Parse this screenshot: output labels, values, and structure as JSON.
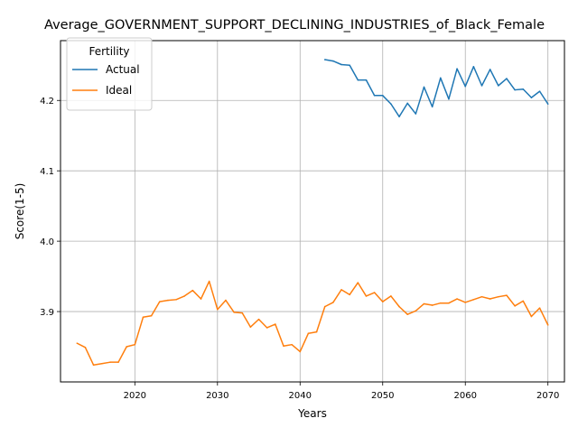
{
  "chart_data": {
    "type": "line",
    "title": "Average_GOVERNMENT_SUPPORT_DECLINING_INDUSTRIES_of_Black_Female",
    "xlabel": "Years",
    "ylabel": "Score(1-5)",
    "xlim": [
      2011,
      2072
    ],
    "ylim": [
      3.8,
      4.285
    ],
    "xticks": [
      2020,
      2030,
      2040,
      2050,
      2060,
      2070
    ],
    "yticks": [
      3.9,
      4.0,
      4.1,
      4.2
    ],
    "xtick_labels": [
      "2020",
      "2030",
      "2040",
      "2050",
      "2060",
      "2070"
    ],
    "ytick_labels": [
      "3.9",
      "4.0",
      "4.1",
      "4.2"
    ],
    "grid": true,
    "legend": {
      "title": "Fertility",
      "placement": "top-left"
    },
    "series": [
      {
        "name": "Actual",
        "color": "#1f77b4",
        "x": [
          2043,
          2044,
          2045,
          2046,
          2047,
          2048,
          2049,
          2050,
          2051,
          2052,
          2053,
          2054,
          2055,
          2056,
          2057,
          2058,
          2059,
          2060,
          2061,
          2062,
          2063,
          2064,
          2065,
          2066,
          2067,
          2068,
          2069,
          2070
        ],
        "values": [
          4.258,
          4.256,
          4.251,
          4.25,
          4.229,
          4.229,
          4.207,
          4.207,
          4.195,
          4.177,
          4.196,
          4.181,
          4.219,
          4.191,
          4.232,
          4.202,
          4.245,
          4.22,
          4.248,
          4.221,
          4.244,
          4.221,
          4.231,
          4.215,
          4.216,
          4.204,
          4.213,
          4.195
        ]
      },
      {
        "name": "Ideal",
        "color": "#ff7f0e",
        "x": [
          2013,
          2014,
          2015,
          2016,
          2017,
          2018,
          2019,
          2020,
          2021,
          2022,
          2023,
          2024,
          2025,
          2026,
          2027,
          2028,
          2029,
          2030,
          2031,
          2032,
          2033,
          2034,
          2035,
          2036,
          2037,
          2038,
          2039,
          2040,
          2041,
          2042,
          2043,
          2044,
          2045,
          2046,
          2047,
          2048,
          2049,
          2050,
          2051,
          2052,
          2053,
          2054,
          2055,
          2056,
          2057,
          2058,
          2059,
          2060,
          2061,
          2062,
          2063,
          2064,
          2065,
          2066,
          2067,
          2068,
          2069,
          2070
        ],
        "values": [
          3.855,
          3.849,
          3.824,
          3.826,
          3.828,
          3.828,
          3.85,
          3.853,
          3.892,
          3.894,
          3.914,
          3.916,
          3.917,
          3.922,
          3.93,
          3.918,
          3.943,
          3.903,
          3.916,
          3.899,
          3.898,
          3.878,
          3.889,
          3.877,
          3.882,
          3.851,
          3.853,
          3.843,
          3.869,
          3.871,
          3.907,
          3.913,
          3.931,
          3.924,
          3.941,
          3.922,
          3.927,
          3.914,
          3.922,
          3.907,
          3.896,
          3.901,
          3.911,
          3.909,
          3.912,
          3.912,
          3.918,
          3.913,
          3.917,
          3.921,
          3.918,
          3.921,
          3.923,
          3.908,
          3.915,
          3.893,
          3.905,
          3.881
        ]
      }
    ]
  }
}
